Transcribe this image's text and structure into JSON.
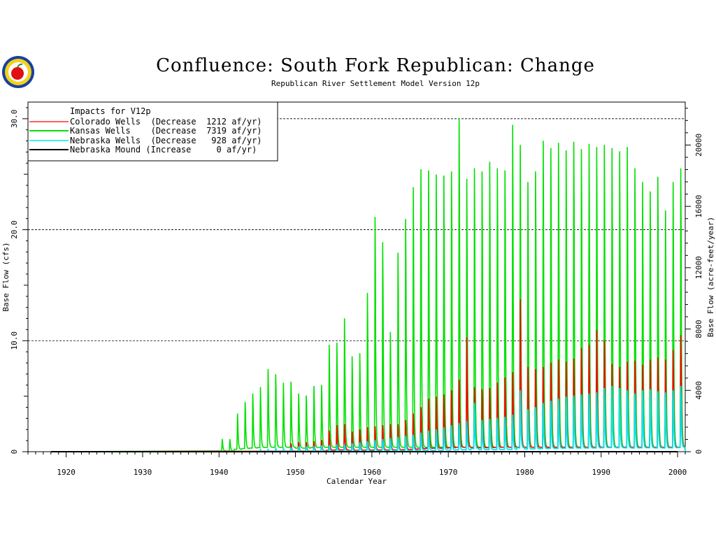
{
  "chart_data": {
    "type": "line",
    "title": "Confluence: South Fork Republican: Change",
    "subtitle": "Republican River Settlement Model Version 12p",
    "xlabel": "Calendar Year",
    "ylabel": "Base Flow (cfs)",
    "ylabel_right": "Base Flow (acre-feet/year)",
    "xlim": [
      1915,
      2001
    ],
    "ylim": [
      0,
      31.5
    ],
    "y2lim": [
      0,
      22800
    ],
    "x_ticks": [
      1920,
      1930,
      1940,
      1950,
      1960,
      1970,
      1980,
      1990,
      2000
    ],
    "x_tick_labels": [
      "1920",
      "1930",
      "1940",
      "1950",
      "1960",
      "1970",
      "1980",
      "1990",
      "2000"
    ],
    "y_ticks": [
      0,
      10,
      20,
      30
    ],
    "y_tick_labels": [
      "0",
      "10.0",
      "20.0",
      "30.0"
    ],
    "y2_ticks": [
      0,
      4000,
      8000,
      12000,
      16000,
      20000
    ],
    "y2_tick_labels": [
      "0",
      "4000",
      "8000",
      "12000",
      "16000",
      "20000"
    ],
    "dashed_gridlines_y": [
      10,
      20,
      30
    ],
    "legend": {
      "position": "top-left",
      "header": "Impacts for V12p",
      "entries": [
        {
          "name": "Colorado",
          "text": "Colorado Wells  (Decrease  1212 af/yr)",
          "color": "#ff0000"
        },
        {
          "name": "Kansas",
          "text": "Kansas Wells    (Decrease  7319 af/yr)",
          "color": "#00e000"
        },
        {
          "name": "NebraskaWells",
          "text": "Nebraska Wells  (Decrease   928 af/yr)",
          "color": "#00e5ee"
        },
        {
          "name": "NebraskaMound",
          "text": "Nebraska Mound (Increase     0 af/yr)",
          "color": "#000000"
        }
      ]
    },
    "series": [
      {
        "name": "Kansas",
        "color": "#00e000",
        "start_year": 1940,
        "annual_peaks": [
          1.2,
          1.2,
          3.6,
          4.7,
          5.5,
          6.1,
          7.8,
          7.3,
          6.5,
          6.6,
          5.5,
          5.3,
          6.2,
          6.3,
          10.1,
          10.3,
          12.6,
          9.0,
          9.3,
          15.0,
          22.2,
          19.8,
          11.3,
          18.8,
          22.0,
          25.0,
          26.7,
          26.6,
          26.2,
          26.1,
          26.5,
          31.5,
          25.8,
          26.8,
          26.5,
          27.4,
          26.8,
          26.6,
          30.9,
          29.0,
          25.5,
          26.5,
          29.4,
          28.7,
          29.2,
          28.5,
          29.3,
          28.6,
          29.1,
          28.8,
          29.0,
          28.7,
          28.4,
          28.8,
          26.8,
          25.5,
          24.6,
          26.0,
          22.8,
          25.5,
          26.8
        ]
      },
      {
        "name": "Colorado",
        "color": "#ff0000",
        "start_year": 1949,
        "annual_peaks": [
          0.8,
          0.9,
          0.9,
          1.0,
          1.1,
          2.0,
          2.5,
          2.6,
          1.9,
          2.1,
          2.3,
          2.4,
          2.5,
          2.6,
          2.6,
          3.0,
          3.6,
          4.2,
          5.0,
          5.2,
          5.4,
          5.8,
          6.8,
          10.8,
          6.1,
          5.9,
          6.0,
          6.5,
          7.0,
          7.5,
          14.4,
          8.0,
          7.8,
          8.0,
          8.4,
          8.7,
          8.5,
          8.8,
          9.8,
          10.1,
          11.5,
          10.5,
          8.3,
          8.0,
          8.5,
          8.6,
          8.2,
          8.7,
          8.9,
          8.7,
          9.6,
          11.0
        ]
      },
      {
        "name": "NebraskaWells",
        "color": "#00e5ee",
        "start_year": 1945,
        "annual_peaks": [
          0.2,
          0.2,
          0.3,
          0.3,
          0.4,
          0.5,
          0.5,
          0.5,
          0.6,
          0.6,
          0.7,
          0.7,
          0.8,
          0.9,
          1.0,
          1.1,
          1.2,
          1.3,
          1.4,
          1.5,
          1.6,
          1.8,
          2.0,
          2.1,
          2.3,
          2.5,
          2.7,
          2.9,
          4.6,
          3.0,
          3.1,
          3.2,
          3.3,
          3.5,
          5.8,
          4.0,
          4.2,
          4.6,
          4.8,
          5.0,
          5.2,
          5.3,
          5.4,
          5.5,
          5.6,
          6.0,
          6.2,
          6.0,
          5.8,
          5.5,
          5.8,
          5.9,
          5.7,
          5.6,
          5.8,
          6.2
        ]
      },
      {
        "name": "NebraskaMound",
        "color": "#000000",
        "start_year": 1918,
        "annual_peaks": []
      }
    ]
  }
}
